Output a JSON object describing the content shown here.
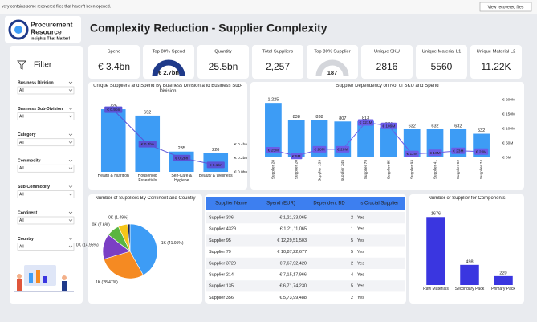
{
  "banner": {
    "message": "very contains some recovered files that haven't been opened.",
    "button": "View recovered files"
  },
  "logo": {
    "line1": "Procurement",
    "line2": "Resource",
    "tagline": "Insights That Matter!"
  },
  "title": "Complexity Reduction - Supplier Complexity",
  "kpis": [
    {
      "label": "Spend",
      "value": "€ 3.4bn"
    },
    {
      "label": "Top 80% Spend",
      "value": "€ 2.7bn",
      "gauge": true,
      "gauge_color": "#1f3a8a"
    },
    {
      "label": "Quantity",
      "value": "25.5bn"
    },
    {
      "label": "Total Suppliers",
      "value": "2,257"
    },
    {
      "label": "Top 80% Supplier",
      "value": "187",
      "gauge": true,
      "gauge_color": "#d4d6db"
    },
    {
      "label": "Unique SKU",
      "value": "2816"
    },
    {
      "label": "Unique Material L1",
      "value": "5560"
    },
    {
      "label": "Unique Material L2",
      "value": "11.22K"
    }
  ],
  "filter": {
    "title": "Filter",
    "slicers": [
      {
        "label": "Business Division",
        "value": "All"
      },
      {
        "label": "Business Sub-Division",
        "value": "All"
      },
      {
        "label": "Category",
        "value": "All"
      },
      {
        "label": "Commodity",
        "value": "All"
      },
      {
        "label": "Sub-Commodity",
        "value": "All"
      },
      {
        "label": "Continent",
        "value": "All"
      },
      {
        "label": "Country",
        "value": "All"
      }
    ]
  },
  "table": {
    "columns": [
      "Supplier Name",
      "Spend (EUR)",
      "Dependent BD",
      "Is Crucial Supplier"
    ],
    "rows": [
      [
        "Supplier 336",
        "€ 1,21,33,065",
        2,
        "Yes"
      ],
      [
        "Supplier 4329",
        "€ 1,21,11,065",
        1,
        "Yes"
      ],
      [
        "Supplier 95",
        "€ 12,29,51,503",
        5,
        "Yes"
      ],
      [
        "Supplier 79",
        "€ 10,87,22,677",
        5,
        "Yes"
      ],
      [
        "Supplier 3720",
        "€ 7,67,92,420",
        2,
        "Yes"
      ],
      [
        "Supplier 214",
        "€ 7,15,17,966",
        4,
        "Yes"
      ],
      [
        "Supplier 135",
        "€ 6,71,74,230",
        5,
        "Yes"
      ],
      [
        "Supplier 356",
        "€ 5,73,99,488",
        2,
        "Yes"
      ]
    ]
  },
  "chart_data": [
    {
      "type": "combo",
      "title": "Unique Suppliers and Spend By Business Division and Business Sub-Division",
      "categories": [
        "Health & Nutrition",
        "Household Essentials",
        "Self-Care & Hygiene",
        "Beauty & Wellness"
      ],
      "ylim": [
        0,
        800
      ],
      "y2lim": [
        0,
        1
      ],
      "y2ticks": [
        {
          "value": 0,
          "label": "€ 0.0bn"
        },
        {
          "value": 0.2,
          "label": "€ 0.2bn"
        },
        {
          "value": 0.4,
          "label": "€ 0.4bn"
        }
      ],
      "series": [
        {
          "type": "bar",
          "color": "#3d9cf5",
          "values": [
            725,
            652,
            235,
            220
          ]
        },
        {
          "type": "line",
          "axis": "y2",
          "color": "#5b52d6",
          "values": [
            0.9,
            0.4,
            0.2,
            0.1
          ],
          "value_labels": [
            "€ 0.9bn",
            "€ 0.4bn",
            "€ 0.2bn",
            "€ 0.1bn"
          ]
        }
      ]
    },
    {
      "type": "combo",
      "title": "Supplier Dependency on No. of SKU and Spend",
      "categories": [
        "Supplier 28",
        "Supplier 20",
        "Supplier 139",
        "Supplier 345",
        "Supplier 79",
        "Supplier 85",
        "Supplier 93",
        "Supplier 41",
        "Supplier 92",
        "Supplier 74"
      ],
      "ylim": [
        0,
        1300
      ],
      "y2lim": [
        0,
        200
      ],
      "y2ticks": [
        {
          "value": 0,
          "label": "€ 0M"
        },
        {
          "value": 50,
          "label": "€ 50M"
        },
        {
          "value": 100,
          "label": "€ 100M"
        },
        {
          "value": 150,
          "label": "€ 150M"
        },
        {
          "value": 200,
          "label": "€ 200M"
        }
      ],
      "series": [
        {
          "type": "bar",
          "color": "#3d9cf5",
          "values": [
            1225,
            838,
            838,
            807,
            813,
            674,
            632,
            632,
            632,
            532
          ],
          "value_labels": [
            "1,225",
            "838",
            "838",
            "807",
            "813",
            "674",
            "632",
            "632",
            "632",
            "532"
          ]
        },
        {
          "type": "line",
          "axis": "y2",
          "color": "#6b5ce7",
          "values": [
            25,
            5,
            28,
            28,
            121,
            109,
            12,
            16,
            23,
            20
          ],
          "value_labels": [
            "€ 25M",
            "€ 5M",
            "€ 28M",
            "€ 28M",
            "€ 121M",
            "€ 109M",
            "€ 12M",
            "€ 16M",
            "€ 23M",
            "€ 20M"
          ]
        }
      ]
    },
    {
      "type": "pie",
      "title": "Number of Suppliers By Continent and Country",
      "values": [
        41.95,
        28.47,
        14.95,
        7.6,
        5.54,
        1.49
      ],
      "value_labels": [
        "1K (41.95%)",
        "1K (28.47%)",
        "0K (14.95%)",
        "0K (7.6%)",
        null,
        "0K (1.49%)"
      ],
      "colors": [
        "#3d9cf5",
        "#f58a22",
        "#7b3fc4",
        "#5ab540",
        "#f5c518",
        "#1b2a5e"
      ]
    },
    {
      "type": "bar",
      "title": "Number of Supplier for Components",
      "categories": [
        "Raw Materials",
        "Secondary Pack",
        "Primary Pack"
      ],
      "values": [
        1676,
        498,
        220
      ],
      "color": "#3a36e0",
      "ylim": [
        0,
        1800
      ]
    }
  ]
}
